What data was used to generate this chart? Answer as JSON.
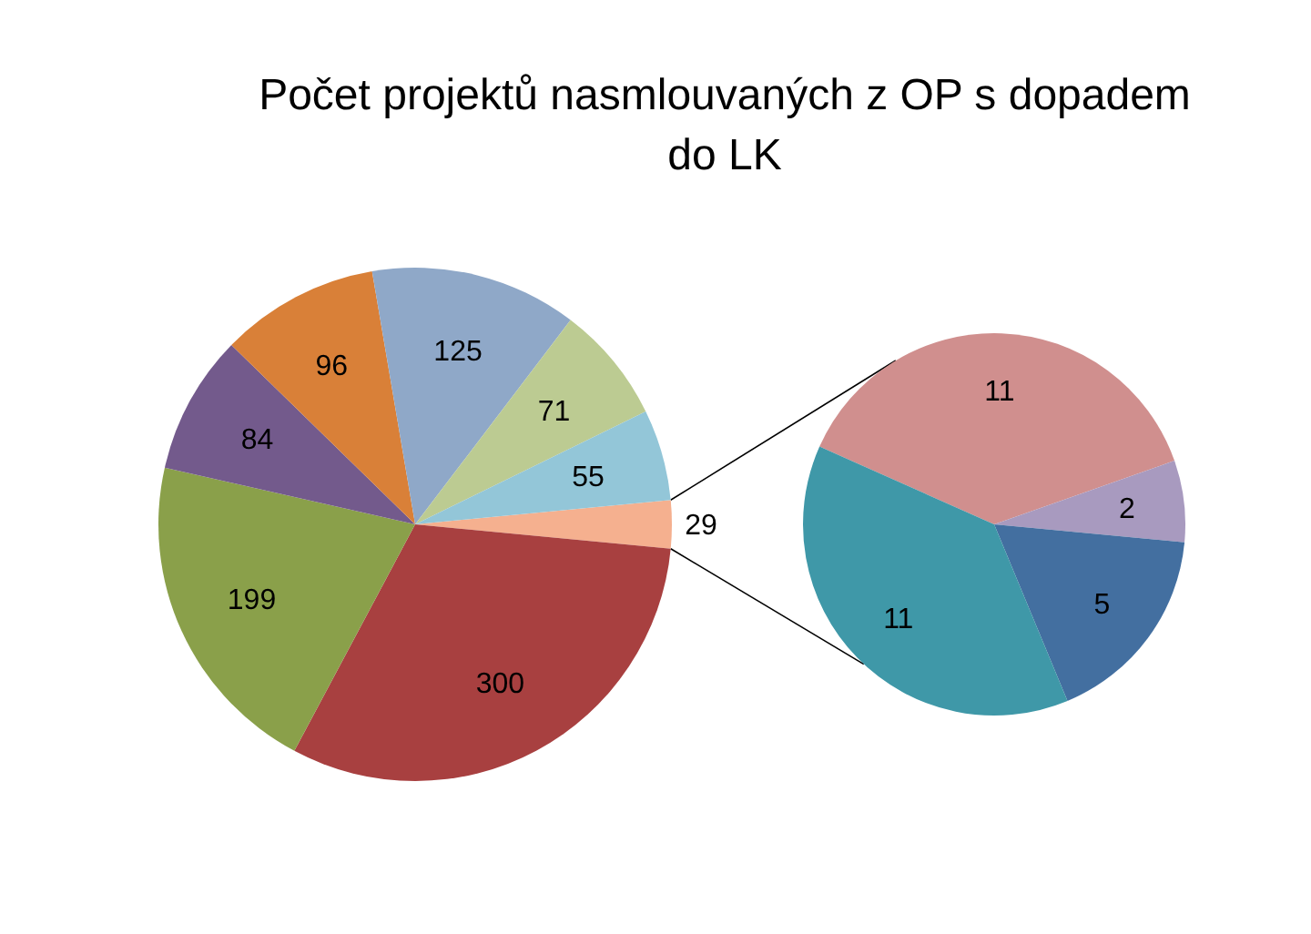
{
  "chart_data": [
    {
      "type": "pie",
      "title": "Počet projektů nasmlouvaných z OP s dopadem do LK",
      "categories": [
        null,
        null,
        null,
        null,
        null,
        null,
        null,
        null
      ],
      "values": [
        29,
        300,
        199,
        84,
        96,
        125,
        71,
        55
      ],
      "colors": [
        "#f5b08f",
        "#a84040",
        "#8aa04a",
        "#735a8c",
        "#d98038",
        "#8fa8c8",
        "#bccb92",
        "#93c6d8"
      ],
      "data_labels": true
    },
    {
      "type": "pie",
      "categories": [
        null,
        null,
        null,
        null
      ],
      "values": [
        11,
        2,
        5,
        11
      ],
      "colors": [
        "#d08f8e",
        "#a89abf",
        "#436fa0",
        "#3f98a8"
      ],
      "data_labels": true
    }
  ]
}
